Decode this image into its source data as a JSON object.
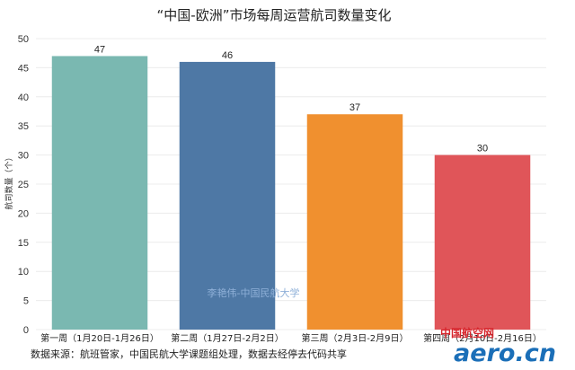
{
  "chart_data": {
    "type": "bar",
    "title": "“中国-欧洲”市场每周运营航司数量变化",
    "ylabel": "航司数量（个）",
    "xlabel": "",
    "ylim": [
      0,
      50
    ],
    "yticks": [
      0,
      5,
      10,
      15,
      20,
      25,
      30,
      35,
      40,
      45,
      50
    ],
    "categories": [
      "第一周（1月20日-1月26日）",
      "第二周（1月27日-2月2日）",
      "第三周（2月3日-2月9日）",
      "第四周（2月10日-2月16日）"
    ],
    "values": [
      47,
      46,
      37,
      30
    ],
    "colors": [
      "#7ab8b1",
      "#4e78a5",
      "#f0902f",
      "#e05559"
    ],
    "grid": true
  },
  "watermark": "李艳伟-中国民航大学",
  "source": "数据来源：航班管家，中国民航大学课题组处理，数据去经停去代码共享",
  "logo": {
    "text": "aero.cn",
    "subtitle": "中国航空网"
  }
}
